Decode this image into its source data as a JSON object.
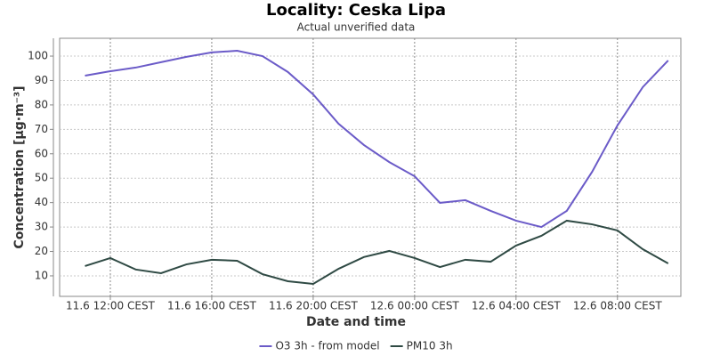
{
  "chart_data": {
    "type": "line",
    "title": "Locality: Ceska Lipa",
    "subtitle": "Actual unverified data",
    "x_label": "Date and time",
    "y_label": "Concentration [µg·m⁻³]",
    "x": [
      "11.6 11:00 CEST",
      "11.6 12:00 CEST",
      "11.6 13:00 CEST",
      "11.6 14:00 CEST",
      "11.6 15:00 CEST",
      "11.6 16:00 CEST",
      "11.6 17:00 CEST",
      "11.6 18:00 CEST",
      "11.6 19:00 CEST",
      "11.6 20:00 CEST",
      "11.6 21:00 CEST",
      "11.6 22:00 CEST",
      "11.6 23:00 CEST",
      "12.6 00:00 CEST",
      "12.6 01:00 CEST",
      "12.6 02:00 CEST",
      "12.6 03:00 CEST",
      "12.6 04:00 CEST",
      "12.6 05:00 CEST",
      "12.6 06:00 CEST",
      "12.6 07:00 CEST",
      "12.6 08:00 CEST",
      "12.6 09:00 CEST",
      "12.6 10:00 CEST"
    ],
    "xlim": [
      "11.6 10:00 CEST",
      "12.6 10:30 CEST"
    ],
    "xticks": [
      "11.6 12:00 CEST",
      "11.6 16:00 CEST",
      "11.6 20:00 CEST",
      "12.6 00:00 CEST",
      "12.6 04:00 CEST",
      "12.6 08:00 CEST"
    ],
    "ylim": [
      1.6,
      107.3
    ],
    "yticks": [
      10,
      20,
      30,
      40,
      50,
      60,
      70,
      80,
      90,
      100
    ],
    "grid": true,
    "legend": "bottom",
    "series": [
      {
        "name": "O3 3h - from model",
        "color": "#6b5bc8",
        "values": [
          92,
          93.8,
          95.3,
          97.5,
          99.7,
          101.5,
          102.2,
          100,
          93.5,
          84.3,
          72.3,
          63.6,
          56.6,
          50.8,
          39.9,
          41,
          36.6,
          32.6,
          30,
          36.6,
          52.6,
          71.6,
          87.3,
          98.2
        ]
      },
      {
        "name": "PM10 3h",
        "color": "#2f4a44",
        "values": [
          14,
          17.3,
          12.6,
          11.1,
          14.7,
          16.6,
          16.2,
          10.7,
          7.8,
          6.7,
          12.9,
          17.7,
          20.2,
          17.3,
          13.6,
          16.6,
          15.8,
          22.4,
          26.4,
          32.6,
          31.1,
          28.6,
          20.9,
          15.1
        ]
      }
    ]
  }
}
